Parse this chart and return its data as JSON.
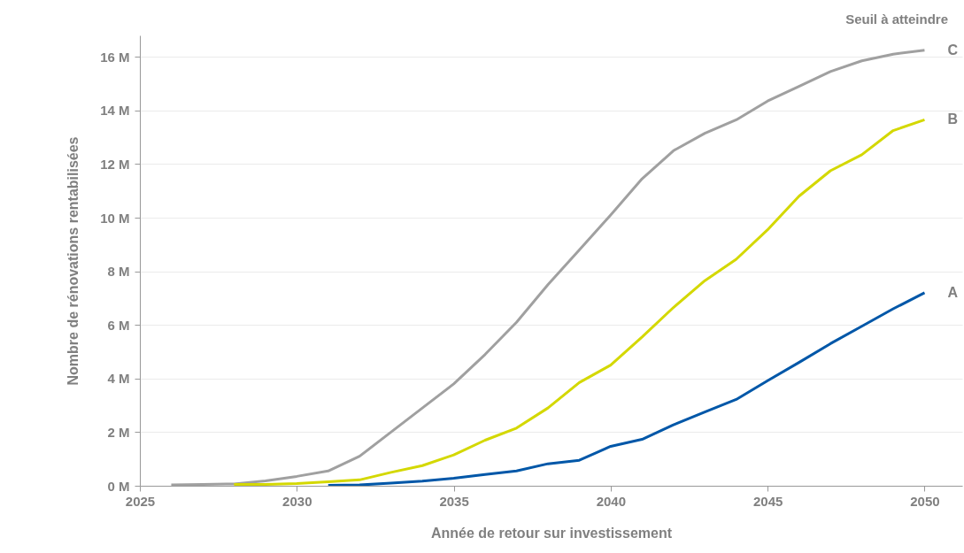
{
  "chart_data": {
    "type": "line",
    "xlabel": "Année de retour sur investissement",
    "ylabel": "Nombre de rénovations rentabilisées",
    "legend_title": "Seuil à atteindre",
    "x": [
      2026,
      2027,
      2028,
      2029,
      2030,
      2031,
      2032,
      2033,
      2034,
      2035,
      2036,
      2037,
      2038,
      2039,
      2040,
      2041,
      2042,
      2043,
      2044,
      2045,
      2046,
      2047,
      2048,
      2049,
      2050
    ],
    "series": [
      {
        "name": "C",
        "color": "#a0a0a0",
        "values": [
          0.03,
          0.05,
          0.07,
          0.18,
          0.35,
          0.55,
          1.1,
          2.0,
          2.9,
          3.8,
          4.9,
          6.1,
          7.5,
          8.8,
          10.1,
          11.45,
          12.5,
          13.15,
          13.65,
          14.35,
          14.9,
          15.45,
          15.85,
          16.1,
          16.25
        ]
      },
      {
        "name": "B",
        "color": "#d4d800",
        "values": [
          null,
          null,
          0.05,
          0.05,
          0.08,
          0.15,
          0.22,
          0.5,
          0.75,
          1.15,
          1.7,
          2.15,
          2.9,
          3.85,
          4.5,
          5.55,
          6.65,
          7.65,
          8.45,
          9.55,
          10.8,
          11.75,
          12.35,
          13.25,
          13.65
        ]
      },
      {
        "name": "A",
        "color": "#0057a8",
        "values": [
          null,
          null,
          null,
          null,
          null,
          0.02,
          0.03,
          0.1,
          0.17,
          0.28,
          0.42,
          0.55,
          0.82,
          0.95,
          1.47,
          1.73,
          2.27,
          2.75,
          3.22,
          3.92,
          4.6,
          5.3,
          5.95,
          6.6,
          7.2
        ]
      }
    ],
    "xlim": [
      2025,
      2051.2
    ],
    "xticks": [
      2025,
      2030,
      2035,
      2040,
      2045,
      2050
    ],
    "ylim": [
      0,
      16.8
    ],
    "yticks": [
      {
        "value": 0,
        "label": "0 M"
      },
      {
        "value": 2,
        "label": "2 M"
      },
      {
        "value": 4,
        "label": "4 M"
      },
      {
        "value": 6,
        "label": "6 M"
      },
      {
        "value": 8,
        "label": "8 M"
      },
      {
        "value": 10,
        "label": "10 M"
      },
      {
        "value": 12,
        "label": "12 M"
      },
      {
        "value": 14,
        "label": "14 M"
      },
      {
        "value": 16,
        "label": "16 M"
      }
    ],
    "grid": "y",
    "line_style": "solid"
  }
}
